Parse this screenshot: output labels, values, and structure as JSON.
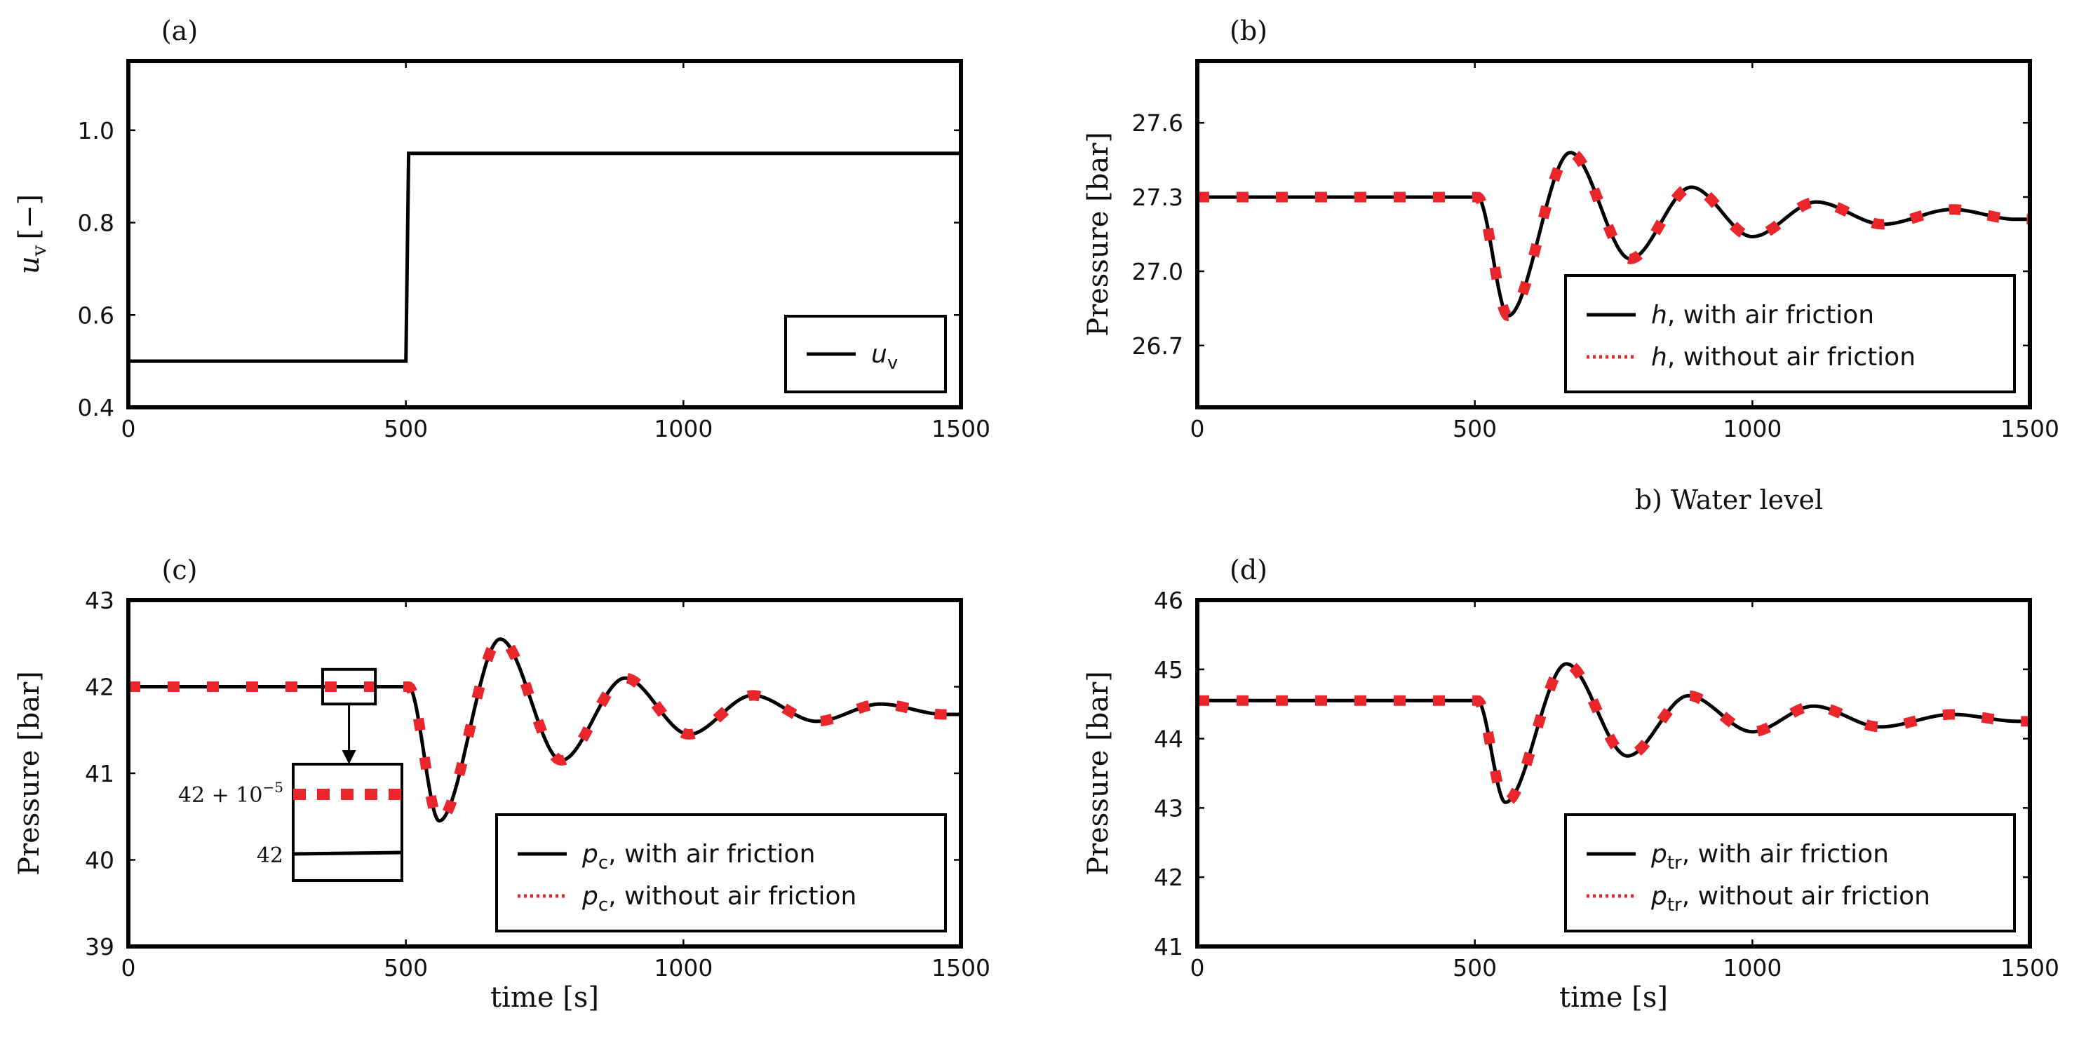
{
  "figure_title": "b) Water level",
  "colors": {
    "line": "#000000",
    "dashed": "#e8262c",
    "axis": "#000000"
  },
  "chart_data": [
    {
      "id": "a",
      "type": "line",
      "panel_label": "(a)",
      "xlabel": "",
      "ylabel_var": "u",
      "ylabel_sub": "v",
      "ylabel_unit": "[−]",
      "xlim": [
        0,
        1500
      ],
      "ylim": [
        0.4,
        1.15
      ],
      "xticks": [
        0,
        500,
        1000,
        1500
      ],
      "xtick_labels": [
        "0",
        "500",
        "1000",
        "1500"
      ],
      "yticks": [
        0.4,
        0.6,
        0.8,
        1.0
      ],
      "ytick_labels": [
        "0.4",
        "0.6",
        "0.8",
        "1.0"
      ],
      "series": [
        {
          "name": "u_v",
          "style": "solid",
          "x": [
            0,
            500,
            505,
            1500
          ],
          "y": [
            0.5,
            0.5,
            0.95,
            0.95
          ]
        }
      ],
      "legend": [
        {
          "style": "solid",
          "var": "u",
          "sub": "v",
          "text": ""
        }
      ],
      "legend_position": "lower-right"
    },
    {
      "id": "b",
      "type": "line",
      "panel_label": "(b)",
      "xlabel": "",
      "ylabel": "Pressure [bar]",
      "xlim": [
        0,
        1500
      ],
      "ylim": [
        26.45,
        27.85
      ],
      "xticks": [
        0,
        500,
        1000,
        1500
      ],
      "xtick_labels": [
        "0",
        "500",
        "1000",
        "1500"
      ],
      "yticks": [
        26.7,
        27.0,
        27.3,
        27.6
      ],
      "ytick_labels": [
        "26.7",
        "27.0",
        "27.3",
        "27.6"
      ],
      "response": {
        "step_time": 500,
        "x_end": 1500,
        "baseline": 27.3,
        "points": [
          [
            500,
            27.3
          ],
          [
            505,
            27.3
          ],
          [
            560,
            26.82
          ],
          [
            672,
            27.48
          ],
          [
            780,
            27.05
          ],
          [
            890,
            27.34
          ],
          [
            1000,
            27.14
          ],
          [
            1115,
            27.28
          ],
          [
            1235,
            27.19
          ],
          [
            1360,
            27.25
          ],
          [
            1475,
            27.21
          ],
          [
            1500,
            27.21
          ]
        ]
      },
      "legend": [
        {
          "style": "solid",
          "var": "h",
          "sub": "",
          "text": ", with air friction"
        },
        {
          "style": "dotted",
          "var": "h",
          "sub": "",
          "text": ", without air friction"
        }
      ],
      "legend_position": "lower-right"
    },
    {
      "id": "c",
      "type": "line",
      "panel_label": "(c)",
      "xlabel": "time [s]",
      "ylabel": "Pressure [bar]",
      "xlim": [
        0,
        1500
      ],
      "ylim": [
        39,
        43
      ],
      "xticks": [
        0,
        500,
        1000,
        1500
      ],
      "xtick_labels": [
        "0",
        "500",
        "1000",
        "1500"
      ],
      "yticks": [
        39,
        40,
        41,
        42,
        43
      ],
      "ytick_labels": [
        "39",
        "40",
        "41",
        "42",
        "43"
      ],
      "response": {
        "step_time": 500,
        "x_end": 1500,
        "baseline": 42,
        "points": [
          [
            500,
            42.0
          ],
          [
            505,
            42.0
          ],
          [
            560,
            40.45
          ],
          [
            670,
            42.55
          ],
          [
            780,
            41.15
          ],
          [
            895,
            42.1
          ],
          [
            1010,
            41.45
          ],
          [
            1125,
            41.9
          ],
          [
            1240,
            41.6
          ],
          [
            1355,
            41.8
          ],
          [
            1470,
            41.68
          ],
          [
            1500,
            41.68
          ]
        ]
      },
      "legend": [
        {
          "style": "solid",
          "var": "p",
          "sub": "c",
          "text": ", with air friction"
        },
        {
          "style": "dotted",
          "var": "p",
          "sub": "c",
          "text": ", without air friction"
        }
      ],
      "legend_position": "lower-right",
      "inset": {
        "zoom_x": [
          350,
          445
        ],
        "zoom_y": [
          41.8,
          42.2
        ],
        "label_top": "42 + 10",
        "label_top_exp": "−5",
        "label_bottom": "42"
      }
    },
    {
      "id": "d",
      "type": "line",
      "panel_label": "(d)",
      "xlabel": "time [s]",
      "ylabel": "Pressure [bar]",
      "xlim": [
        0,
        1500
      ],
      "ylim": [
        41,
        46
      ],
      "xticks": [
        0,
        500,
        1000,
        1500
      ],
      "xtick_labels": [
        "0",
        "500",
        "1000",
        "1500"
      ],
      "yticks": [
        41,
        42,
        43,
        44,
        45,
        46
      ],
      "ytick_labels": [
        "41",
        "42",
        "43",
        "44",
        "45",
        "46"
      ],
      "response": {
        "step_time": 500,
        "x_end": 1500,
        "baseline": 44.55,
        "points": [
          [
            500,
            44.55
          ],
          [
            505,
            44.55
          ],
          [
            555,
            43.08
          ],
          [
            665,
            45.08
          ],
          [
            775,
            43.75
          ],
          [
            885,
            44.62
          ],
          [
            1000,
            44.1
          ],
          [
            1110,
            44.47
          ],
          [
            1230,
            44.17
          ],
          [
            1360,
            44.35
          ],
          [
            1480,
            44.25
          ],
          [
            1500,
            44.25
          ]
        ]
      },
      "legend": [
        {
          "style": "solid",
          "var": "p",
          "sub": "tr",
          "text": ", with air friction"
        },
        {
          "style": "dotted",
          "var": "p",
          "sub": "tr",
          "text": ", without air friction"
        }
      ],
      "legend_position": "lower-right"
    }
  ]
}
